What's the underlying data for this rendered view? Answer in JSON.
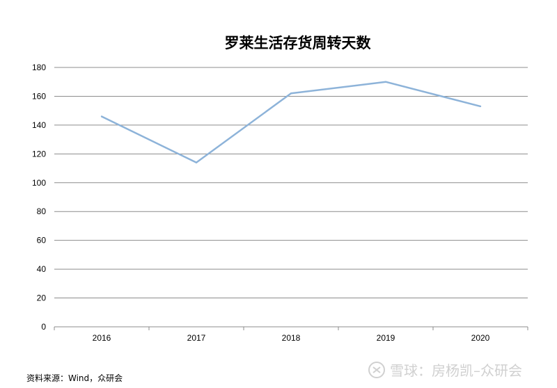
{
  "chart_data": {
    "type": "line",
    "title": "罗莱生活存货周转天数",
    "categories": [
      "2016",
      "2017",
      "2018",
      "2019",
      "2020"
    ],
    "series": [
      {
        "values": [
          146,
          114,
          162,
          170,
          153
        ]
      }
    ],
    "ylim": [
      0,
      180
    ],
    "yticks": [
      0,
      20,
      40,
      60,
      80,
      100,
      120,
      140,
      160,
      180
    ],
    "grid": true,
    "legend": "none",
    "line_color": "#8db3d9",
    "grid_color": "#8c8c8c"
  },
  "source_note": "资料来源：Wind，众研会",
  "watermark": {
    "icon": "snowball-icon",
    "text": "雪球：房杨凯–众研会"
  }
}
